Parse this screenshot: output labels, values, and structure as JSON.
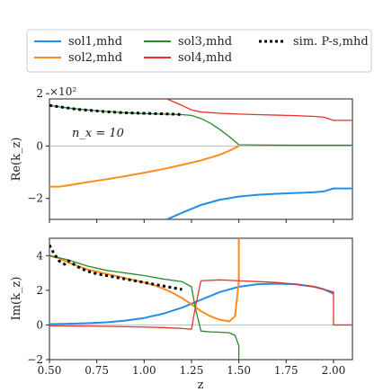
{
  "chart_data": [
    {
      "type": "line",
      "panel": "top",
      "ylabel": "Re(k_z)",
      "y_multiplier": "×10²",
      "annotation": "n_x = 10",
      "xlim": [
        0.5,
        2.1
      ],
      "ylim": [
        -2.8,
        1.8
      ],
      "yticks": [
        2,
        0,
        -2
      ],
      "ytick_labels": [
        "2",
        "0",
        "−2"
      ],
      "xticks": [
        0.5,
        0.75,
        1.0,
        1.25,
        1.5,
        1.75,
        2.0
      ],
      "grid": false,
      "series": [
        {
          "name": "sol1,mhd",
          "color": "#1f8fef",
          "style": "solid",
          "x": [
            1.12,
            1.2,
            1.3,
            1.4,
            1.5,
            1.6,
            1.7,
            1.8,
            1.85,
            1.9,
            1.95,
            2.0,
            2.1
          ],
          "y": [
            -2.8,
            -2.55,
            -2.25,
            -2.05,
            -1.93,
            -1.86,
            -1.82,
            -1.79,
            -1.78,
            -1.76,
            -1.73,
            -1.62,
            -1.62
          ]
        },
        {
          "name": "sol2,mhd",
          "color": "#ff8c1a",
          "style": "solid",
          "x": [
            0.5,
            0.55,
            0.6,
            0.7,
            0.8,
            0.9,
            1.0,
            1.1,
            1.2,
            1.3,
            1.4,
            1.45,
            1.5
          ],
          "y": [
            -1.55,
            -1.55,
            -1.5,
            -1.38,
            -1.27,
            -1.15,
            -1.02,
            -0.88,
            -0.72,
            -0.55,
            -0.33,
            -0.18,
            0.0
          ]
        },
        {
          "name": "sol3,mhd",
          "color": "#2a8a2a",
          "style": "solid",
          "x": [
            0.5,
            0.6,
            0.7,
            0.8,
            0.9,
            1.0,
            1.1,
            1.2,
            1.25,
            1.3,
            1.35,
            1.4,
            1.45,
            1.5,
            1.6,
            1.8,
            2.0,
            2.1
          ],
          "y": [
            1.55,
            1.45,
            1.38,
            1.32,
            1.27,
            1.24,
            1.22,
            1.2,
            1.17,
            1.05,
            0.87,
            0.63,
            0.36,
            0.05,
            0.04,
            0.03,
            0.03,
            0.03
          ]
        },
        {
          "name": "sol4,mhd",
          "color": "#e8322c",
          "style": "solid",
          "x": [
            1.12,
            1.2,
            1.25,
            1.3,
            1.4,
            1.5,
            1.6,
            1.7,
            1.8,
            1.9,
            1.95,
            2.0,
            2.1
          ],
          "y": [
            1.8,
            1.55,
            1.38,
            1.3,
            1.25,
            1.22,
            1.2,
            1.18,
            1.16,
            1.13,
            1.1,
            0.98,
            0.98
          ]
        },
        {
          "name": "sim. P-s,mhd",
          "color": "#000000",
          "style": "dotted",
          "x": [
            0.5,
            0.55,
            0.6,
            0.65,
            0.7,
            0.75,
            0.8,
            0.85,
            0.9,
            0.95,
            1.0,
            1.05,
            1.1,
            1.15,
            1.2
          ],
          "y": [
            1.55,
            1.5,
            1.45,
            1.4,
            1.37,
            1.34,
            1.31,
            1.29,
            1.27,
            1.26,
            1.25,
            1.24,
            1.23,
            1.22,
            1.2
          ]
        }
      ]
    },
    {
      "type": "line",
      "panel": "bottom",
      "ylabel": "Im(k_z)",
      "xlabel": "z",
      "xlim": [
        0.5,
        2.1
      ],
      "ylim": [
        -2.0,
        5.0
      ],
      "yticks": [
        4,
        2,
        0,
        -2
      ],
      "ytick_labels": [
        "4",
        "2",
        "0",
        "−2"
      ],
      "xticks": [
        0.5,
        0.75,
        1.0,
        1.25,
        1.5,
        1.75,
        2.0
      ],
      "xtick_labels": [
        "0.50",
        "0.75",
        "1.00",
        "1.25",
        "1.50",
        "1.75",
        "2.00"
      ],
      "grid": false,
      "series": [
        {
          "name": "sol1,mhd",
          "color": "#1f8fef",
          "style": "solid",
          "x": [
            0.5,
            0.6,
            0.7,
            0.8,
            0.9,
            1.0,
            1.1,
            1.2,
            1.3,
            1.4,
            1.5,
            1.6,
            1.7,
            1.8,
            1.9,
            1.95,
            2.0
          ],
          "y": [
            0.05,
            0.07,
            0.1,
            0.15,
            0.25,
            0.4,
            0.65,
            1.0,
            1.45,
            1.9,
            2.2,
            2.35,
            2.38,
            2.35,
            2.2,
            2.05,
            1.8
          ]
        },
        {
          "name": "sol2,mhd",
          "color": "#ff8c1a",
          "style": "solid",
          "x": [
            0.5,
            0.55,
            0.6,
            0.7,
            0.8,
            0.9,
            1.0,
            1.05,
            1.1,
            1.15,
            1.2,
            1.25,
            1.3,
            1.35,
            1.4,
            1.45,
            1.48,
            1.5,
            1.5
          ],
          "y": [
            4.0,
            3.85,
            3.6,
            3.2,
            2.95,
            2.7,
            2.45,
            2.3,
            2.1,
            1.85,
            1.55,
            1.2,
            0.8,
            0.5,
            0.3,
            0.2,
            0.5,
            2.5,
            5.0
          ]
        },
        {
          "name": "sol3,mhd",
          "color": "#2a8a2a",
          "style": "solid",
          "x": [
            0.5,
            0.6,
            0.7,
            0.8,
            0.9,
            1.0,
            1.1,
            1.2,
            1.25,
            1.27,
            1.3,
            1.35,
            1.4,
            1.45,
            1.48,
            1.5,
            1.5
          ],
          "y": [
            4.0,
            3.75,
            3.4,
            3.15,
            3.0,
            2.85,
            2.65,
            2.5,
            2.2,
            1.0,
            -0.35,
            -0.4,
            -0.42,
            -0.45,
            -0.6,
            -1.2,
            -2.0
          ]
        },
        {
          "name": "sol4,mhd",
          "color": "#e8322c",
          "style": "solid",
          "x": [
            0.5,
            0.8,
            1.0,
            1.1,
            1.2,
            1.25,
            1.27,
            1.3,
            1.4,
            1.5,
            1.6,
            1.7,
            1.8,
            1.9,
            1.95,
            2.0,
            2.0,
            2.1
          ],
          "y": [
            -0.05,
            -0.08,
            -0.12,
            -0.15,
            -0.2,
            -0.25,
            1.0,
            2.55,
            2.6,
            2.55,
            2.5,
            2.45,
            2.35,
            2.2,
            2.05,
            1.9,
            0.0,
            0.0
          ]
        },
        {
          "name": "sim. P-s,mhd",
          "color": "#000000",
          "style": "dotted",
          "x": [
            0.5,
            0.52,
            0.55,
            0.58,
            0.6,
            0.65,
            0.7,
            0.75,
            0.8,
            0.85,
            0.9,
            0.95,
            1.0,
            1.05,
            1.1,
            1.15,
            1.2
          ],
          "y": [
            4.6,
            4.2,
            3.7,
            3.5,
            3.7,
            3.35,
            3.1,
            2.95,
            2.85,
            2.75,
            2.65,
            2.55,
            2.45,
            2.35,
            2.25,
            2.15,
            2.05
          ]
        }
      ]
    }
  ],
  "legend": {
    "placement": "top",
    "entries": [
      {
        "label": "sol1,mhd",
        "color": "#1f8fef",
        "style": "solid"
      },
      {
        "label": "sol3,mhd",
        "color": "#2a8a2a",
        "style": "solid"
      },
      {
        "label": "sim. P-s,mhd",
        "color": "#000000",
        "style": "dotted"
      },
      {
        "label": "sol2,mhd",
        "color": "#ff8c1a",
        "style": "solid"
      },
      {
        "label": "sol4,mhd",
        "color": "#e8322c",
        "style": "solid"
      }
    ]
  },
  "xtick_labels": [
    "0.50",
    "0.75",
    "1.00",
    "1.25",
    "1.50",
    "1.75",
    "2.00"
  ]
}
